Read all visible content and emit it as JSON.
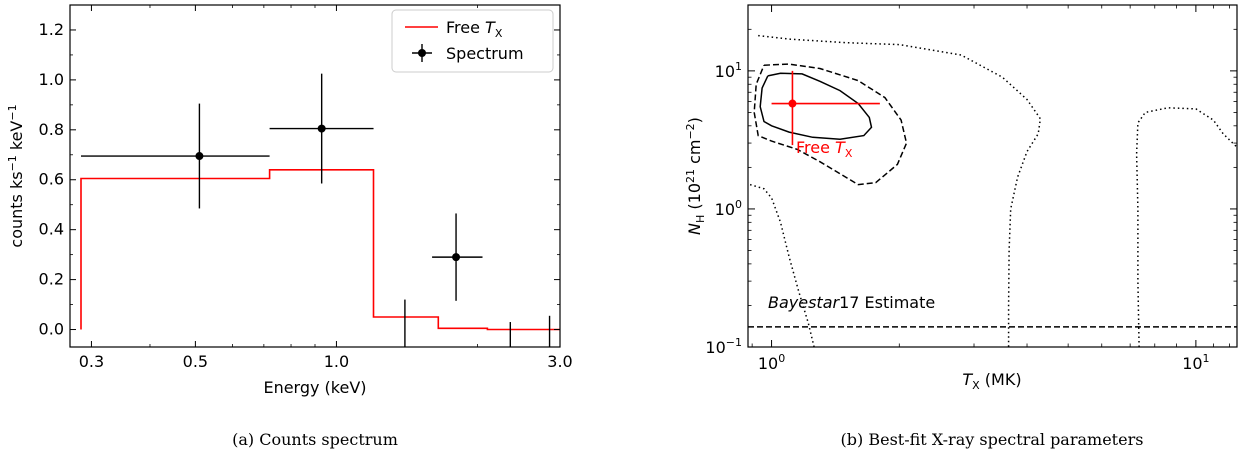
{
  "chart_data": [
    {
      "type": "line",
      "panel": "a",
      "caption": "(a) Counts spectrum",
      "xlabel": "Energy (keV)",
      "ylabel": "counts ks⁻¹ keV⁻¹",
      "xscale": "log",
      "xlim": [
        0.27,
        3.0
      ],
      "ylim": [
        -0.07,
        1.3
      ],
      "xticks": [
        0.3,
        0.5,
        1.0,
        3.0
      ],
      "xtick_labels": [
        "0.3",
        "0.5",
        "1.0",
        "3.0"
      ],
      "yticks": [
        0.0,
        0.2,
        0.4,
        0.6,
        0.8,
        1.0,
        1.2
      ],
      "ytick_labels": [
        "0.0",
        "0.2",
        "0.4",
        "0.6",
        "0.8",
        "1.0",
        "1.2"
      ],
      "legend": {
        "placement": "top-right",
        "entries": [
          "Free T_X",
          "Spectrum"
        ]
      },
      "series": [
        {
          "name": "Free T_X",
          "kind": "step",
          "color": "#ff0000",
          "edges": [
            0.285,
            0.72,
            1.2,
            1.65,
            2.1,
            3.0
          ],
          "values": [
            0.605,
            0.64,
            0.05,
            0.005,
            0.0
          ]
        },
        {
          "name": "Spectrum",
          "kind": "errorbar",
          "color": "#000000",
          "points": [
            {
              "x": 0.51,
              "y": 0.695,
              "xlo": 0.285,
              "xhi": 0.72,
              "ylo": 0.485,
              "yhi": 0.905
            },
            {
              "x": 0.93,
              "y": 0.805,
              "xlo": 0.72,
              "xhi": 1.2,
              "ylo": 0.585,
              "yhi": 1.025
            },
            {
              "x": 1.8,
              "y": 0.29,
              "xlo": 1.6,
              "xhi": 2.05,
              "ylo": 0.115,
              "yhi": 0.465
            },
            {
              "x": 1.4,
              "y": null,
              "xlo": null,
              "xhi": null,
              "ylo": -0.1,
              "yhi": 0.12
            },
            {
              "x": 2.35,
              "y": null,
              "xlo": null,
              "xhi": null,
              "ylo": -0.1,
              "yhi": 0.03
            },
            {
              "x": 2.85,
              "y": -0.07,
              "xlo": null,
              "xhi": null,
              "ylo": -0.1,
              "yhi": 0.055
            }
          ]
        }
      ]
    },
    {
      "type": "line",
      "panel": "b",
      "caption": "(b) Best-fit X-ray spectral parameters",
      "xlabel": "T_X (MK)",
      "ylabel": "N_H (10^21 cm^-2)",
      "xscale": "log",
      "yscale": "log",
      "xlim": [
        0.88,
        12.5
      ],
      "ylim": [
        0.1,
        30
      ],
      "xticks": [
        1,
        10
      ],
      "xtick_labels": [
        "10^0",
        "10^1"
      ],
      "yticks": [
        0.1,
        1,
        10
      ],
      "ytick_labels": [
        "10^-1",
        "10^0",
        "10^1"
      ],
      "annotations": [
        {
          "text": "Free T_X",
          "color": "#ff0000"
        },
        {
          "text": "Bayestar17 Estimate",
          "color": "#000000"
        }
      ],
      "bestfit": {
        "x": 1.12,
        "y": 5.8,
        "xerr": [
          1.0,
          1.8
        ],
        "yerr": [
          2.9,
          10.0
        ],
        "color": "#ff0000"
      },
      "bayestar17_estimate": 0.14,
      "contours": [
        {
          "style": "solid",
          "points": [
            [
              0.98,
              9.2
            ],
            [
              1.05,
              9.6
            ],
            [
              1.18,
              9.5
            ],
            [
              1.3,
              8.4
            ],
            [
              1.45,
              7.2
            ],
            [
              1.6,
              5.8
            ],
            [
              1.7,
              4.6
            ],
            [
              1.72,
              3.9
            ],
            [
              1.65,
              3.4
            ],
            [
              1.45,
              3.2
            ],
            [
              1.25,
              3.3
            ],
            [
              1.1,
              3.6
            ],
            [
              1.0,
              4.0
            ],
            [
              0.96,
              4.3
            ],
            [
              0.94,
              5.5
            ],
            [
              0.95,
              7.5
            ],
            [
              0.98,
              9.2
            ]
          ]
        },
        {
          "style": "dashed",
          "points": [
            [
              0.96,
              11.0
            ],
            [
              1.1,
              11.2
            ],
            [
              1.3,
              10.4
            ],
            [
              1.6,
              8.5
            ],
            [
              1.85,
              6.4
            ],
            [
              2.02,
              4.4
            ],
            [
              2.08,
              3.0
            ],
            [
              1.98,
              2.1
            ],
            [
              1.76,
              1.55
            ],
            [
              1.6,
              1.5
            ],
            [
              1.45,
              1.8
            ],
            [
              1.3,
              2.2
            ],
            [
              1.15,
              2.7
            ],
            [
              1.0,
              3.1
            ],
            [
              0.93,
              3.4
            ],
            [
              0.91,
              5.0
            ],
            [
              0.92,
              8.0
            ],
            [
              0.96,
              11.0
            ]
          ]
        },
        {
          "style": "dotted",
          "points": [
            [
              0.93,
              18.0
            ],
            [
              1.1,
              17.0
            ],
            [
              1.5,
              16.0
            ],
            [
              2.0,
              15.5
            ],
            [
              2.8,
              13.0
            ],
            [
              3.5,
              9.0
            ],
            [
              4.0,
              6.2
            ],
            [
              4.3,
              4.5
            ],
            [
              4.25,
              3.5
            ],
            [
              4.0,
              2.6
            ],
            [
              3.8,
              1.7
            ],
            [
              3.66,
              1.0
            ],
            [
              3.63,
              0.5
            ],
            [
              3.62,
              0.2
            ],
            [
              3.62,
              0.1
            ]
          ]
        },
        {
          "style": "dotted",
          "points": [
            [
              0.89,
              1.5
            ],
            [
              0.96,
              1.4
            ],
            [
              1.0,
              1.2
            ],
            [
              1.05,
              0.8
            ],
            [
              1.1,
              0.45
            ],
            [
              1.16,
              0.25
            ],
            [
              1.22,
              0.15
            ],
            [
              1.26,
              0.1
            ]
          ]
        },
        {
          "style": "dotted",
          "points": [
            [
              7.35,
              0.1
            ],
            [
              7.3,
              0.3
            ],
            [
              7.3,
              1.0
            ],
            [
              7.25,
              2.5
            ],
            [
              7.3,
              4.2
            ],
            [
              7.6,
              5.0
            ],
            [
              8.6,
              5.4
            ],
            [
              10.0,
              5.3
            ],
            [
              11.0,
              4.4
            ],
            [
              11.6,
              3.5
            ],
            [
              12.5,
              2.8
            ]
          ]
        }
      ]
    }
  ]
}
